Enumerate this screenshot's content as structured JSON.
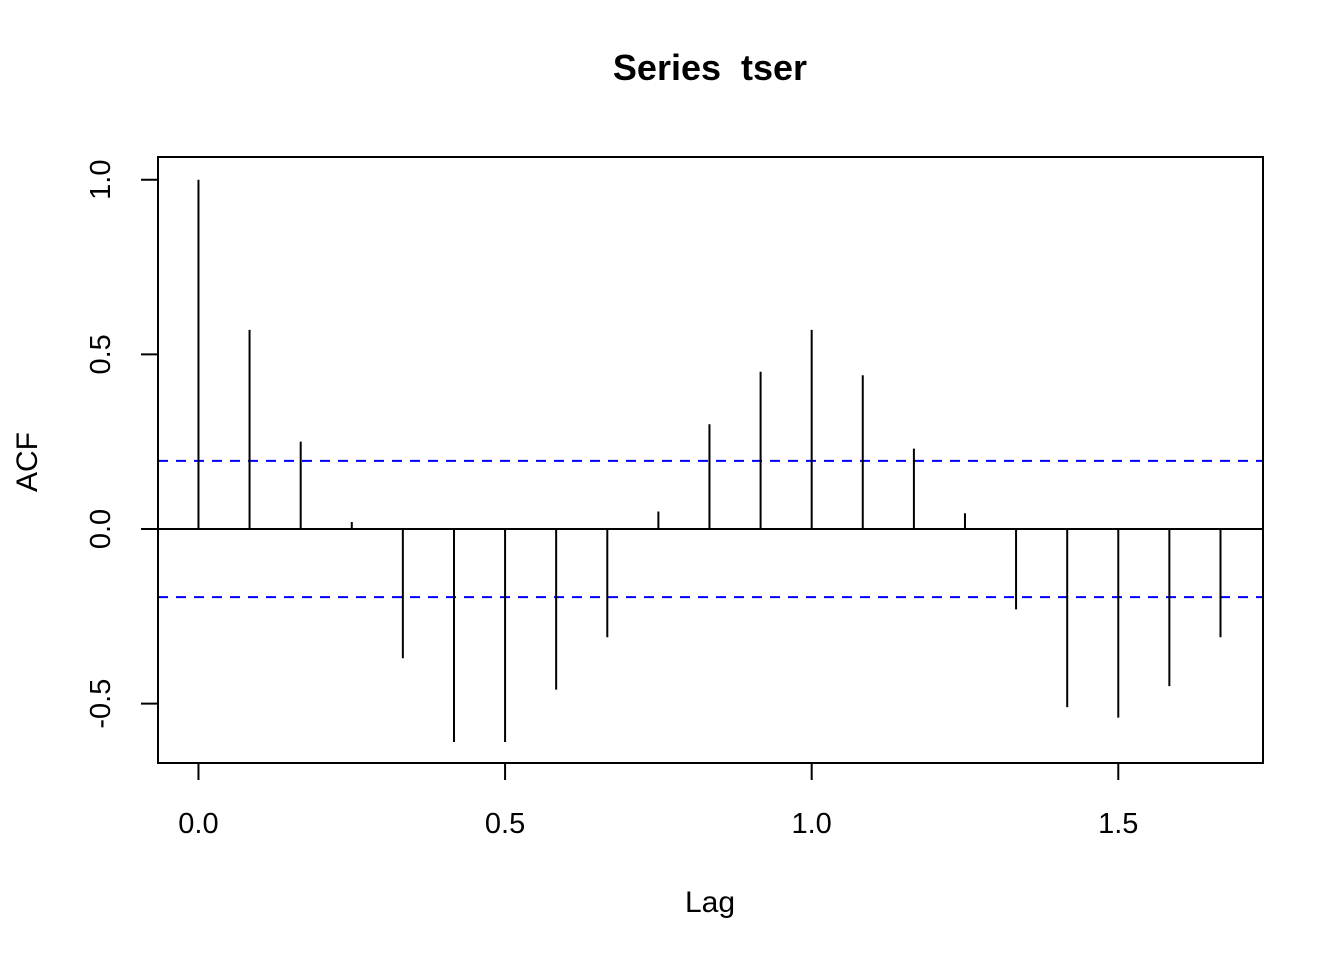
{
  "chart_data": {
    "type": "bar",
    "title": "Series  tser",
    "xlabel": "Lag",
    "ylabel": "ACF",
    "xlim": [
      -0.066,
      1.736
    ],
    "ylim": [
      -0.67,
      1.065
    ],
    "x_ticks": [
      "0.0",
      "0.5",
      "1.0",
      "1.5"
    ],
    "y_ticks": [
      "-0.5",
      "0.0",
      "0.5",
      "1.0"
    ],
    "lags": [
      0,
      0.0833,
      0.1667,
      0.25,
      0.3333,
      0.4167,
      0.5,
      0.5833,
      0.6667,
      0.75,
      0.8333,
      0.9167,
      1.0,
      1.0833,
      1.1667,
      1.25,
      1.3333,
      1.4167,
      1.5,
      1.5833,
      1.6667
    ],
    "acf": [
      1.0,
      0.57,
      0.25,
      0.02,
      -0.37,
      -0.61,
      -0.61,
      -0.46,
      -0.31,
      0.05,
      0.3,
      0.45,
      0.57,
      0.44,
      0.23,
      0.045,
      -0.23,
      -0.51,
      -0.54,
      -0.45,
      -0.31
    ],
    "confidence_bound": 0.195,
    "colors": {
      "bars": "#000000",
      "confidence_lines": "#0000ff",
      "zero_line": "#000000",
      "frame": "#000000"
    },
    "grid": false
  }
}
